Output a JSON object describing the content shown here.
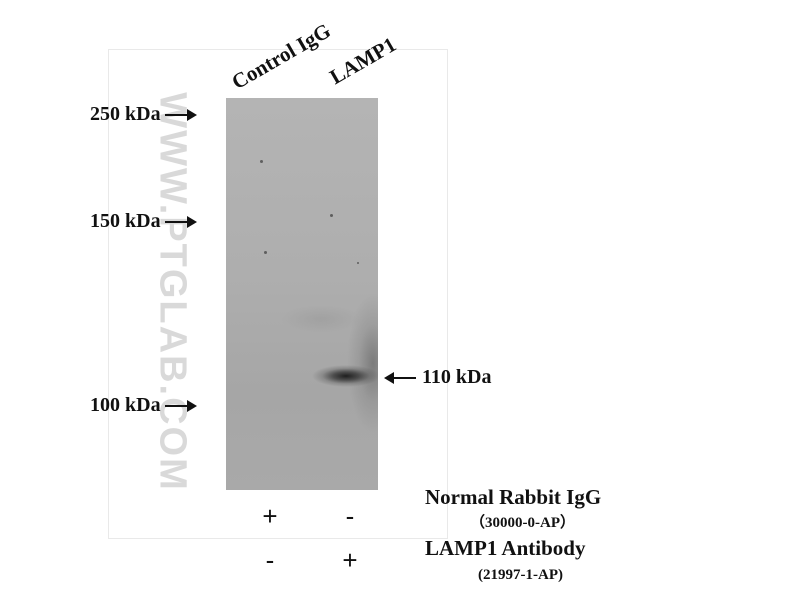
{
  "watermark": "WWW.PTGLAB.COM",
  "lanes": [
    {
      "label": "Control IgG"
    },
    {
      "label": "LAMP1"
    }
  ],
  "markers": [
    {
      "label": "250 kDa"
    },
    {
      "label": "150 kDa"
    },
    {
      "label": "100 kDa"
    }
  ],
  "target_band": {
    "label": "110 kDa"
  },
  "conditions": [
    {
      "name": "Normal Rabbit IgG",
      "catalog": "（30000-0-AP）",
      "lane_signs": [
        "+",
        "-"
      ]
    },
    {
      "name": "LAMP1 Antibody",
      "catalog": "(21997-1-AP)",
      "lane_signs": [
        "-",
        "+"
      ]
    }
  ]
}
